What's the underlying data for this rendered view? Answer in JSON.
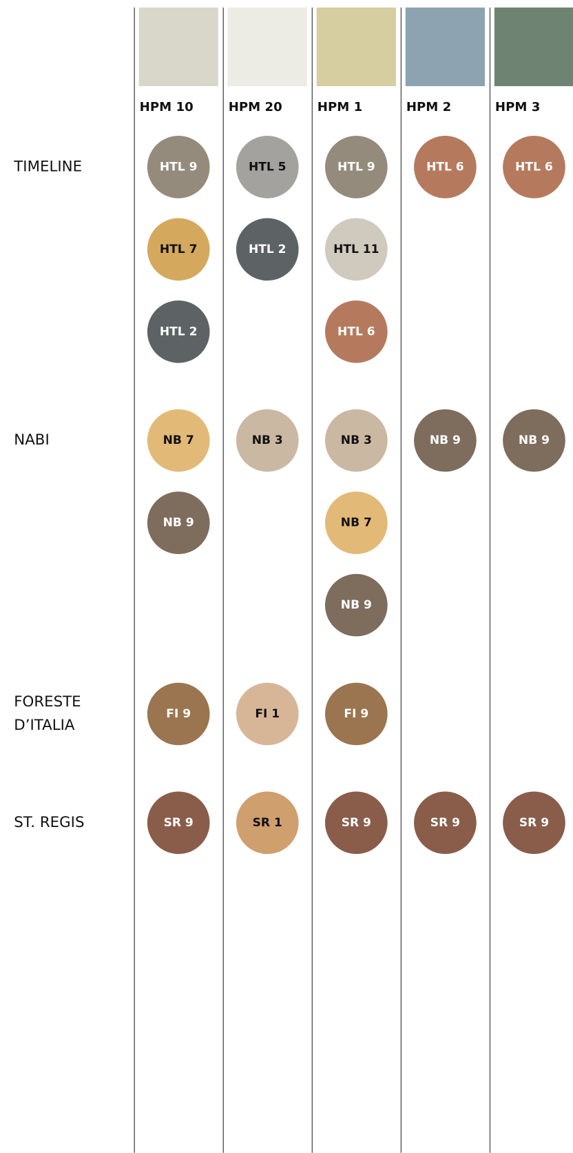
{
  "columns": [
    {
      "title": "HPM 10",
      "color": "#d9d7c9"
    },
    {
      "title": "HPM 20",
      "color": "#ecebe4"
    },
    {
      "title": "HPM 1",
      "color": "#d6cda0"
    },
    {
      "title": "HPM 2",
      "color": "#8da3b1"
    },
    {
      "title": "HPM 3",
      "color": "#6e8371"
    }
  ],
  "rows": [
    {
      "label": [
        "TIMELINE"
      ],
      "cells": [
        [
          {
            "label": "HTL 9",
            "color": "#958b7c"
          },
          {
            "label": "HTL 7",
            "color": "#d4a95e"
          },
          {
            "label": "HTL 2",
            "color": "#5d6364"
          }
        ],
        [
          {
            "label": "HTL 5",
            "color": "#a4a29e"
          },
          {
            "label": "HTL 2",
            "color": "#5d6364"
          }
        ],
        [
          {
            "label": "HTL 9",
            "color": "#958b7c"
          },
          {
            "label": "HTL 11",
            "color": "#d0c9bd"
          },
          {
            "label": "HTL 6",
            "color": "#b57a5d"
          }
        ],
        [
          {
            "label": "HTL 6",
            "color": "#b57a5d"
          }
        ],
        [
          {
            "label": "HTL 6",
            "color": "#b57a5d"
          }
        ]
      ]
    },
    {
      "label": [
        "NABI"
      ],
      "cells": [
        [
          {
            "label": "NB 7",
            "color": "#e3b978"
          },
          {
            "label": "NB 9",
            "color": "#7e6d5c"
          }
        ],
        [
          {
            "label": "NB 3",
            "color": "#cab8a3"
          }
        ],
        [
          {
            "label": "NB 3",
            "color": "#cab8a3"
          },
          {
            "label": "NB 7",
            "color": "#e3b978"
          },
          {
            "label": "NB 9",
            "color": "#7e6d5c"
          }
        ],
        [
          {
            "label": "NB 9",
            "color": "#7e6d5c"
          }
        ],
        [
          {
            "label": "NB 9",
            "color": "#7e6d5c"
          }
        ]
      ]
    },
    {
      "label": [
        "FORESTE",
        "D’ITALIA"
      ],
      "cells": [
        [
          {
            "label": "FI 9",
            "color": "#9a7550"
          }
        ],
        [
          {
            "label": "FI 1",
            "color": "#d7b698"
          }
        ],
        [
          {
            "label": "FI 9",
            "color": "#9a7550"
          }
        ],
        [],
        []
      ]
    },
    {
      "label": [
        "ST. REGIS"
      ],
      "cells": [
        [
          {
            "label": "SR 9",
            "color": "#8a5d4a"
          }
        ],
        [
          {
            "label": "SR 1",
            "color": "#cf9f6e"
          }
        ],
        [
          {
            "label": "SR 9",
            "color": "#8a5d4a"
          }
        ],
        [
          {
            "label": "SR 9",
            "color": "#8a5d4a"
          }
        ],
        [
          {
            "label": "SR 9",
            "color": "#8a5d4a"
          }
        ]
      ]
    }
  ]
}
